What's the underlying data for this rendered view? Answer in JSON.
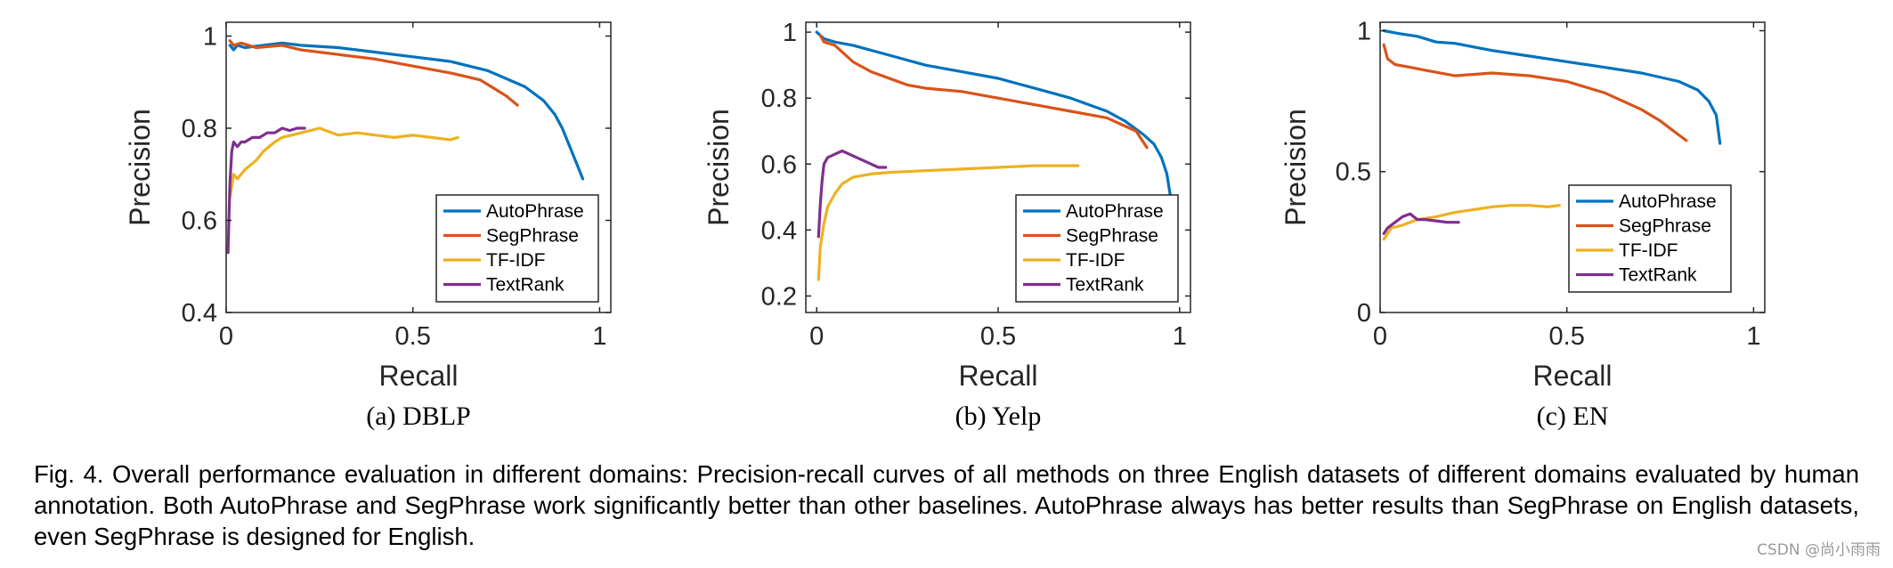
{
  "colors": {
    "AutoPhrase": "#0072BD",
    "SegPhrase": "#D95319",
    "TF-IDF": "#EDB120",
    "TextRank": "#7E2F8E"
  },
  "chart_data": [
    {
      "type": "line",
      "subtitle": "(a)  DBLP",
      "xlabel": "Recall",
      "ylabel": "Precision",
      "xlim": [
        0,
        1.03
      ],
      "ylim": [
        0.4,
        1.03
      ],
      "xticks": [
        0,
        0.5,
        1
      ],
      "xtick_labels": [
        "0",
        "0.5",
        "1"
      ],
      "yticks": [
        0.4,
        0.6,
        0.8,
        1
      ],
      "ytick_labels": [
        "0.4",
        "0.6",
        "0.8",
        "1"
      ],
      "grid": false,
      "legend": "lower-right",
      "series": [
        {
          "name": "AutoPhrase",
          "x": [
            0.01,
            0.02,
            0.03,
            0.05,
            0.1,
            0.15,
            0.2,
            0.3,
            0.4,
            0.5,
            0.6,
            0.7,
            0.8,
            0.85,
            0.88,
            0.9,
            0.92,
            0.94,
            0.955
          ],
          "y": [
            0.98,
            0.97,
            0.98,
            0.975,
            0.98,
            0.985,
            0.98,
            0.975,
            0.965,
            0.955,
            0.945,
            0.925,
            0.89,
            0.86,
            0.83,
            0.8,
            0.76,
            0.72,
            0.69
          ]
        },
        {
          "name": "SegPhrase",
          "x": [
            0.01,
            0.02,
            0.04,
            0.08,
            0.15,
            0.2,
            0.3,
            0.4,
            0.5,
            0.6,
            0.68,
            0.72,
            0.75,
            0.78
          ],
          "y": [
            0.99,
            0.98,
            0.985,
            0.975,
            0.98,
            0.97,
            0.96,
            0.95,
            0.935,
            0.92,
            0.905,
            0.885,
            0.87,
            0.85
          ]
        },
        {
          "name": "TF-IDF",
          "x": [
            0.01,
            0.02,
            0.03,
            0.05,
            0.08,
            0.1,
            0.13,
            0.15,
            0.2,
            0.25,
            0.3,
            0.35,
            0.4,
            0.45,
            0.5,
            0.55,
            0.6,
            0.62
          ],
          "y": [
            0.65,
            0.7,
            0.69,
            0.71,
            0.73,
            0.75,
            0.77,
            0.78,
            0.79,
            0.8,
            0.785,
            0.79,
            0.785,
            0.78,
            0.785,
            0.78,
            0.775,
            0.78
          ]
        },
        {
          "name": "TextRank",
          "x": [
            0.005,
            0.01,
            0.015,
            0.02,
            0.03,
            0.04,
            0.05,
            0.07,
            0.09,
            0.11,
            0.13,
            0.15,
            0.17,
            0.19,
            0.21
          ],
          "y": [
            0.53,
            0.68,
            0.75,
            0.77,
            0.76,
            0.77,
            0.77,
            0.78,
            0.78,
            0.79,
            0.79,
            0.8,
            0.795,
            0.8,
            0.8
          ]
        }
      ]
    },
    {
      "type": "line",
      "subtitle": "(b)  Yelp",
      "xlabel": "Recall",
      "ylabel": "Precision",
      "xlim": [
        -0.03,
        1.03
      ],
      "ylim": [
        0.15,
        1.03
      ],
      "xticks": [
        0,
        0.5,
        1
      ],
      "xtick_labels": [
        "0",
        "0.5",
        "1"
      ],
      "yticks": [
        0.2,
        0.4,
        0.6,
        0.8,
        1
      ],
      "ytick_labels": [
        "0.2",
        "0.4",
        "0.6",
        "0.8",
        "1"
      ],
      "grid": false,
      "legend": "lower-right",
      "series": [
        {
          "name": "AutoPhrase",
          "x": [
            0.0,
            0.02,
            0.05,
            0.1,
            0.2,
            0.3,
            0.4,
            0.5,
            0.6,
            0.7,
            0.8,
            0.85,
            0.9,
            0.93,
            0.95,
            0.965,
            0.975
          ],
          "y": [
            1.0,
            0.98,
            0.97,
            0.96,
            0.93,
            0.9,
            0.88,
            0.86,
            0.83,
            0.8,
            0.76,
            0.73,
            0.69,
            0.66,
            0.62,
            0.57,
            0.5
          ]
        },
        {
          "name": "SegPhrase",
          "x": [
            0.01,
            0.02,
            0.05,
            0.08,
            0.1,
            0.15,
            0.2,
            0.25,
            0.3,
            0.4,
            0.5,
            0.6,
            0.7,
            0.8,
            0.88,
            0.91
          ],
          "y": [
            0.99,
            0.97,
            0.96,
            0.93,
            0.91,
            0.88,
            0.86,
            0.84,
            0.83,
            0.82,
            0.8,
            0.78,
            0.76,
            0.74,
            0.7,
            0.65
          ]
        },
        {
          "name": "TF-IDF",
          "x": [
            0.005,
            0.01,
            0.02,
            0.03,
            0.05,
            0.07,
            0.1,
            0.15,
            0.2,
            0.3,
            0.4,
            0.5,
            0.6,
            0.7,
            0.72
          ],
          "y": [
            0.25,
            0.35,
            0.42,
            0.47,
            0.51,
            0.54,
            0.56,
            0.57,
            0.575,
            0.58,
            0.585,
            0.59,
            0.595,
            0.595,
            0.595
          ]
        },
        {
          "name": "TextRank",
          "x": [
            0.005,
            0.01,
            0.015,
            0.02,
            0.03,
            0.05,
            0.07,
            0.09,
            0.11,
            0.13,
            0.15,
            0.17,
            0.19
          ],
          "y": [
            0.38,
            0.48,
            0.55,
            0.6,
            0.62,
            0.63,
            0.64,
            0.63,
            0.62,
            0.61,
            0.6,
            0.59,
            0.59
          ]
        }
      ]
    },
    {
      "type": "line",
      "subtitle": "(c)  EN",
      "xlabel": "Recall",
      "ylabel": "Precision",
      "xlim": [
        0,
        1.03
      ],
      "ylim": [
        0,
        1.03
      ],
      "xticks": [
        0,
        0.5,
        1
      ],
      "xtick_labels": [
        "0",
        "0.5",
        "1"
      ],
      "yticks": [
        0,
        0.5,
        1
      ],
      "ytick_labels": [
        "0",
        "0.5",
        "1"
      ],
      "grid": false,
      "legend": "lower-right",
      "series": [
        {
          "name": "AutoPhrase",
          "x": [
            0.01,
            0.05,
            0.1,
            0.15,
            0.2,
            0.3,
            0.4,
            0.5,
            0.6,
            0.7,
            0.8,
            0.85,
            0.88,
            0.9,
            0.91
          ],
          "y": [
            1.0,
            0.99,
            0.98,
            0.96,
            0.955,
            0.93,
            0.91,
            0.89,
            0.87,
            0.85,
            0.82,
            0.79,
            0.75,
            0.7,
            0.6
          ]
        },
        {
          "name": "SegPhrase",
          "x": [
            0.01,
            0.02,
            0.04,
            0.08,
            0.12,
            0.2,
            0.3,
            0.4,
            0.5,
            0.6,
            0.7,
            0.75,
            0.8,
            0.82
          ],
          "y": [
            0.95,
            0.9,
            0.88,
            0.87,
            0.86,
            0.84,
            0.85,
            0.84,
            0.82,
            0.78,
            0.72,
            0.68,
            0.63,
            0.61
          ]
        },
        {
          "name": "TF-IDF",
          "x": [
            0.01,
            0.03,
            0.06,
            0.1,
            0.15,
            0.2,
            0.25,
            0.3,
            0.35,
            0.4,
            0.45,
            0.48
          ],
          "y": [
            0.26,
            0.3,
            0.31,
            0.33,
            0.34,
            0.355,
            0.365,
            0.375,
            0.38,
            0.38,
            0.375,
            0.38
          ]
        },
        {
          "name": "TextRank",
          "x": [
            0.01,
            0.02,
            0.04,
            0.06,
            0.08,
            0.1,
            0.12,
            0.15,
            0.18,
            0.21
          ],
          "y": [
            0.28,
            0.3,
            0.32,
            0.34,
            0.35,
            0.33,
            0.33,
            0.325,
            0.32,
            0.32
          ]
        }
      ]
    }
  ],
  "caption": "Fig. 4. Overall performance evaluation in different domains: Precision-recall curves of all methods on three English datasets of different domains evaluated by human annotation. Both AutoPhrase and SegPhrase work significantly better than other baselines. AutoPhrase always has better results than SegPhrase on English datasets, even SegPhrase is designed for English.",
  "watermark": "CSDN @尚小雨雨"
}
